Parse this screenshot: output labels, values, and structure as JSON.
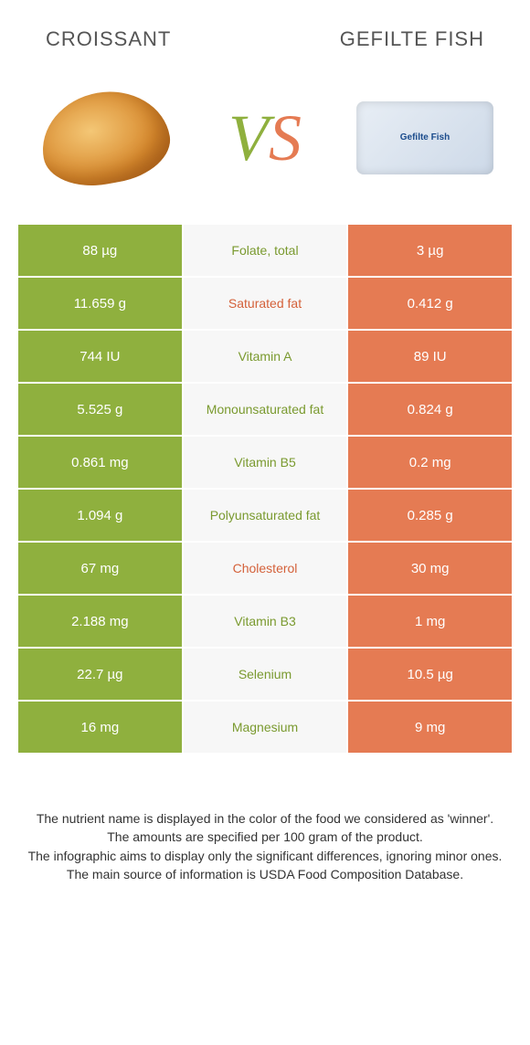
{
  "header": {
    "left": "CROISSANT",
    "right": "GEFILTE FISH"
  },
  "vs": {
    "v": "V",
    "s": "S"
  },
  "fish_package": "Gefilte Fish",
  "colors": {
    "left_bg": "#8fb03e",
    "right_bg": "#e57b53",
    "mid_bg": "#f7f7f7",
    "mid_green": "#7a9a2f",
    "mid_orange": "#d4613a"
  },
  "rows": [
    {
      "left": "88 µg",
      "label": "Folate, total",
      "winner": "green",
      "right": "3 µg"
    },
    {
      "left": "11.659 g",
      "label": "Saturated fat",
      "winner": "orange",
      "right": "0.412 g"
    },
    {
      "left": "744 IU",
      "label": "Vitamin A",
      "winner": "green",
      "right": "89 IU"
    },
    {
      "left": "5.525 g",
      "label": "Monounsaturated fat",
      "winner": "green",
      "right": "0.824 g"
    },
    {
      "left": "0.861 mg",
      "label": "Vitamin B5",
      "winner": "green",
      "right": "0.2 mg"
    },
    {
      "left": "1.094 g",
      "label": "Polyunsaturated fat",
      "winner": "green",
      "right": "0.285 g"
    },
    {
      "left": "67 mg",
      "label": "Cholesterol",
      "winner": "orange",
      "right": "30 mg"
    },
    {
      "left": "2.188 mg",
      "label": "Vitamin B3",
      "winner": "green",
      "right": "1 mg"
    },
    {
      "left": "22.7 µg",
      "label": "Selenium",
      "winner": "green",
      "right": "10.5 µg"
    },
    {
      "left": "16 mg",
      "label": "Magnesium",
      "winner": "green",
      "right": "9 mg"
    }
  ],
  "footer": {
    "line1": "The nutrient name is displayed in the color of the food we considered as 'winner'.",
    "line2": "The amounts are specified per 100 gram of the product.",
    "line3": "The infographic aims to display only the significant differences, ignoring minor ones.",
    "line4": "The main source of information is USDA Food Composition Database."
  }
}
